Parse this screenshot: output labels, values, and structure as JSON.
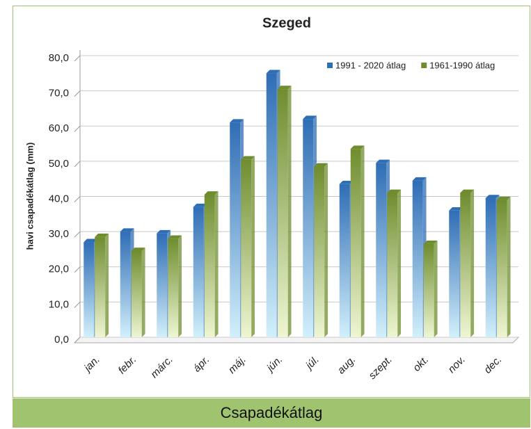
{
  "chart_data": {
    "type": "bar",
    "title": "Szeged",
    "y_label": "havi csapadékátlag (mm)",
    "categories": [
      "jan.",
      "febr.",
      "márc.",
      "ápr.",
      "máj.",
      "jún.",
      "júl.",
      "aug.",
      "szept.",
      "okt.",
      "nov.",
      "dec."
    ],
    "series": [
      {
        "name": "1991 - 2020 átlag",
        "color": "#2f6db5",
        "values": [
          27,
          30,
          29.5,
          37,
          61,
          75,
          62,
          43.5,
          49.5,
          44.5,
          36,
          39.5
        ]
      },
      {
        "name": "1961-1990 átlag",
        "color": "#6f8d2f",
        "values": [
          28.5,
          24.5,
          28,
          40.5,
          50.5,
          70.5,
          48.5,
          53.5,
          41,
          26.5,
          41,
          39
        ]
      }
    ],
    "ylim": [
      0,
      80
    ],
    "yticks": [
      {
        "value": 0,
        "label": "0,0"
      },
      {
        "value": 10,
        "label": "10,0"
      },
      {
        "value": 20,
        "label": "20,0"
      },
      {
        "value": 30,
        "label": "30,0"
      },
      {
        "value": 40,
        "label": "40,0"
      },
      {
        "value": 50,
        "label": "50,0"
      },
      {
        "value": 60,
        "label": "60,0"
      },
      {
        "value": 70,
        "label": "70,0"
      },
      {
        "value": 80,
        "label": "80,0"
      }
    ],
    "grid": true,
    "legend": "top-right"
  },
  "caption": "Csapadékátlag"
}
